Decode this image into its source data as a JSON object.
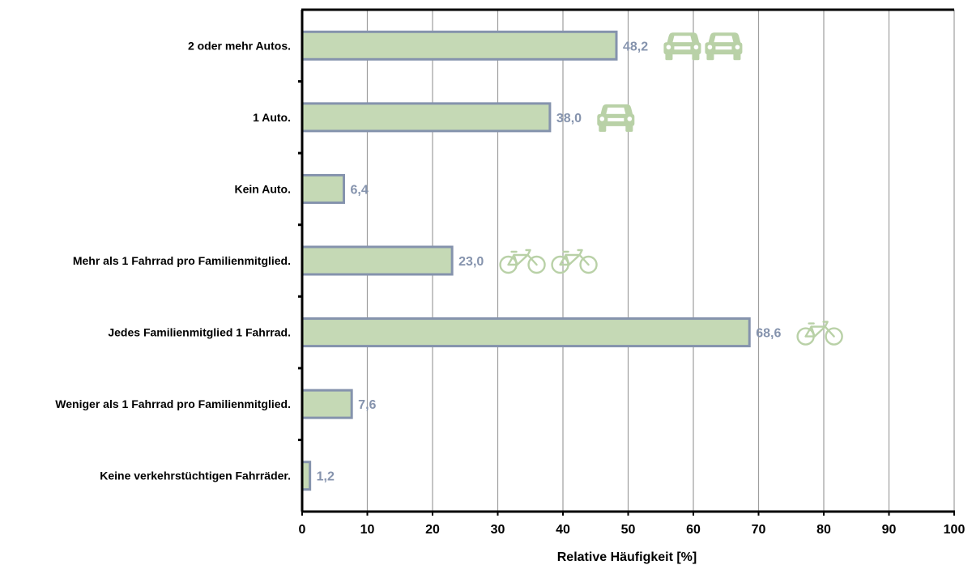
{
  "chart_data": {
    "type": "bar",
    "orientation": "horizontal",
    "categories": [
      "2 oder mehr Autos.",
      "1 Auto.",
      "Kein Auto.",
      "Mehr als 1 Fahrrad pro Familienmitglied.",
      "Jedes Familienmitglied 1 Fahrrad.",
      "Weniger als 1 Fahrrad pro Familienmitglied.",
      "Keine verkehrstüchtigen Fahrräder."
    ],
    "values": [
      48.2,
      38.0,
      6.4,
      23.0,
      68.6,
      7.6,
      1.2
    ],
    "value_labels": [
      "48,2",
      "38,0",
      "6,4",
      "23,0",
      "68,6",
      "7,6",
      "1,2"
    ],
    "icons": [
      [
        "car-icon",
        "car-icon"
      ],
      [
        "car-icon"
      ],
      [],
      [
        "bicycle-icon",
        "bicycle-icon"
      ],
      [
        "bicycle-icon"
      ],
      [],
      []
    ],
    "xlabel": "Relative Häufigkeit [%]",
    "ylabel": "",
    "xlim": [
      0,
      100
    ],
    "xticks": [
      0,
      10,
      20,
      30,
      40,
      50,
      60,
      70,
      80,
      90,
      100
    ],
    "grid": "vertical",
    "colors": {
      "bar_fill": "#c5d9b5",
      "bar_stroke": "#8593ad",
      "value_label": "#8593ad",
      "icon": "#b9d1a7",
      "grid": "#9e9e9e",
      "axis": "#000000"
    }
  }
}
